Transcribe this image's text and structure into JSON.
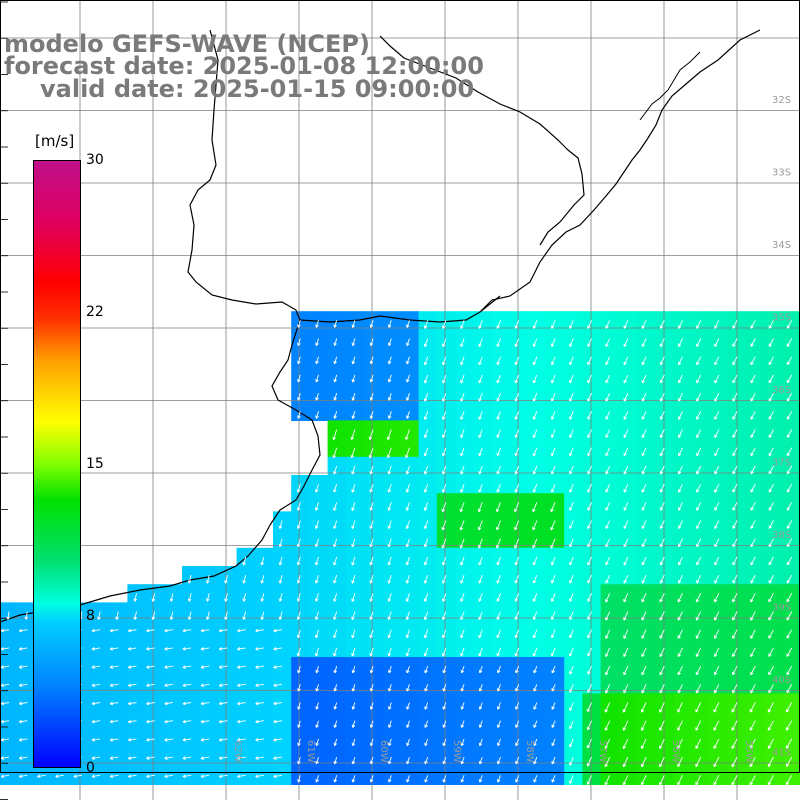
{
  "title": {
    "line1": "modelo GEFS-WAVE (NCEP)",
    "line2": "forecast date: 2025-01-08 12:00:00",
    "line3": "valid date: 2025-01-15 09:00:00"
  },
  "colorbar": {
    "unit": "[m/s]",
    "ticks": [
      "30",
      "22",
      "15",
      "8",
      "0"
    ],
    "min": 0,
    "max": 30
  },
  "lat_labels": [
    "32S",
    "33S",
    "34S",
    "35S",
    "36S",
    "37S",
    "38S",
    "39S",
    "40S",
    "41S"
  ],
  "lon_labels": [
    "62W",
    "61W",
    "60W",
    "59W",
    "58W",
    "57W",
    "56W",
    "55W"
  ],
  "colors": {
    "land": "#ffffff",
    "coast": "#000000",
    "grid": "#7f7f7f",
    "title": "#7a7a7a",
    "arrows": "#ffffff"
  }
}
